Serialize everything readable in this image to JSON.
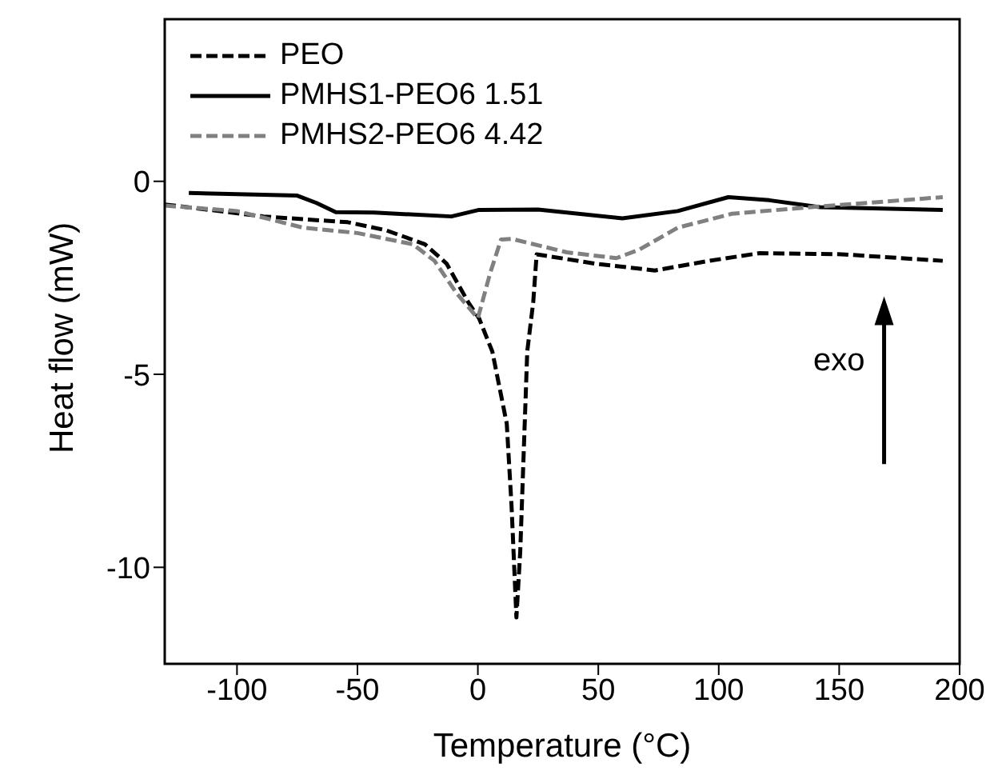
{
  "chart_data": {
    "type": "line",
    "xlabel": "Temperature (°C)",
    "ylabel": "Heat flow (mW)",
    "xlim": [
      -130,
      200
    ],
    "xticks": [
      -100,
      -50,
      0,
      50,
      100,
      150,
      200
    ],
    "ylim": [
      -12.5,
      4.2
    ],
    "yticks": [
      -10,
      -5,
      0
    ],
    "grid": false,
    "legend": "top left",
    "marker": "none",
    "annotations": [
      "exo"
    ],
    "series": [
      {
        "name": "PEO",
        "color": "#000000",
        "line_style": "dashed",
        "x": [
          -130,
          -89,
          -54,
          -38,
          -22,
          -13,
          -4,
          0.5,
          6,
          12,
          14,
          16,
          17.6,
          20.5,
          23,
          24.4,
          48.4,
          73.5,
          96,
          117,
          151,
          193
        ],
        "values": [
          -0.6,
          -0.91,
          -1.06,
          -1.27,
          -1.63,
          -2.13,
          -3.13,
          -3.55,
          -4.41,
          -6.28,
          -8.43,
          -11.3,
          -9.58,
          -4.41,
          -3.12,
          -1.89,
          -2.13,
          -2.31,
          -2.06,
          -1.86,
          -1.89,
          -2.06
        ]
      },
      {
        "name": "PMHS1-PEO6 1.51",
        "color": "#000000",
        "line_style": "solid",
        "x": [
          -120,
          -75,
          -67,
          -59,
          -43,
          -11,
          0.5,
          25,
          60,
          83,
          104,
          121,
          142,
          193
        ],
        "values": [
          -0.3,
          -0.37,
          -0.56,
          -0.8,
          -0.81,
          -0.91,
          -0.74,
          -0.73,
          -0.96,
          -0.77,
          -0.41,
          -0.49,
          -0.67,
          -0.74
        ]
      },
      {
        "name": "PMHS2-PEO6 4.42",
        "color": "#808080",
        "line_style": "dashed",
        "x": [
          -130,
          -100,
          -72.6,
          -50,
          -27,
          -18,
          -8.7,
          0,
          5,
          9.6,
          14,
          37,
          57.5,
          67,
          83,
          105.5,
          140,
          193
        ],
        "values": [
          -0.63,
          -0.77,
          -1.2,
          -1.34,
          -1.63,
          -2.06,
          -2.91,
          -3.55,
          -2.4,
          -1.51,
          -1.49,
          -1.84,
          -1.99,
          -1.77,
          -1.2,
          -0.84,
          -0.66,
          -0.41
        ]
      }
    ]
  }
}
